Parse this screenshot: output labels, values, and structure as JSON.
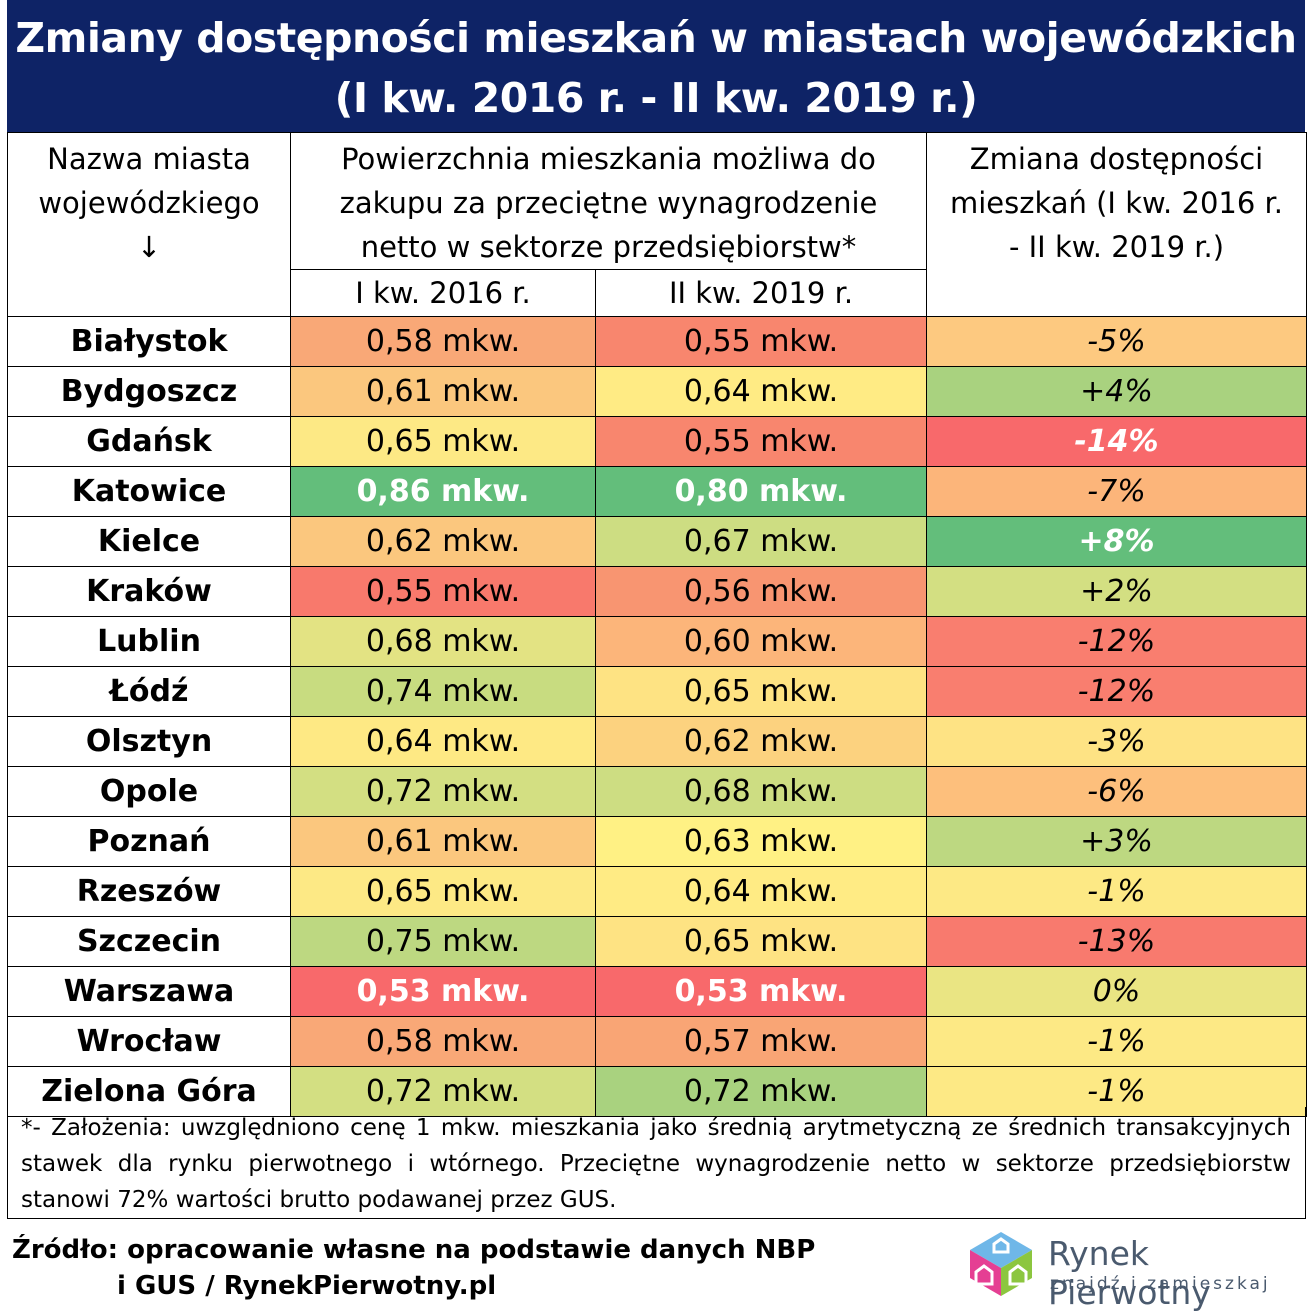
{
  "title": {
    "line1": "Zmiany dostępności mieszkań w miastach wojewódzkich",
    "line2": "(I kw. 2016 r. - II kw. 2019 r.)"
  },
  "header": {
    "city_col": "Nazwa miasta wojewódzkiego ↓",
    "area_col": "Powierzchnia mieszkania możliwa do zakupu za przeciętne wynagrodzenie netto w sektorze przedsiębiorstw*",
    "change_col": "Zmiana dostępności mieszkań (I kw. 2016 r. - II kw. 2019 r.)",
    "sub_2016": "I kw. 2016 r.",
    "sub_2019": "II kw. 2019 r."
  },
  "rows": [
    {
      "city": "Białystok",
      "v2016": "0,58 mkw.",
      "v2019": "0,55 mkw.",
      "change": "-5%"
    },
    {
      "city": "Bydgoszcz",
      "v2016": "0,61 mkw.",
      "v2019": "0,64 mkw.",
      "change": "+4%"
    },
    {
      "city": "Gdańsk",
      "v2016": "0,65 mkw.",
      "v2019": "0,55 mkw.",
      "change": "-14%"
    },
    {
      "city": "Katowice",
      "v2016": "0,86 mkw.",
      "v2019": "0,80 mkw.",
      "change": "-7%"
    },
    {
      "city": "Kielce",
      "v2016": "0,62 mkw.",
      "v2019": "0,67 mkw.",
      "change": "+8%"
    },
    {
      "city": "Kraków",
      "v2016": "0,55 mkw.",
      "v2019": "0,56 mkw.",
      "change": "+2%"
    },
    {
      "city": "Lublin",
      "v2016": "0,68 mkw.",
      "v2019": "0,60 mkw.",
      "change": "-12%"
    },
    {
      "city": "Łódź",
      "v2016": "0,74 mkw.",
      "v2019": "0,65 mkw.",
      "change": "-12%"
    },
    {
      "city": "Olsztyn",
      "v2016": "0,64 mkw.",
      "v2019": "0,62 mkw.",
      "change": "-3%"
    },
    {
      "city": "Opole",
      "v2016": "0,72 mkw.",
      "v2019": "0,68 mkw.",
      "change": "-6%"
    },
    {
      "city": "Poznań",
      "v2016": "0,61 mkw.",
      "v2019": "0,63 mkw.",
      "change": "+3%"
    },
    {
      "city": "Rzeszów",
      "v2016": "0,65 mkw.",
      "v2019": "0,64 mkw.",
      "change": "-1%"
    },
    {
      "city": "Szczecin",
      "v2016": "0,75 mkw.",
      "v2019": "0,65 mkw.",
      "change": "-13%"
    },
    {
      "city": "Warszawa",
      "v2016": "0,53 mkw.",
      "v2019": "0,53 mkw.",
      "change": "0%"
    },
    {
      "city": "Wrocław",
      "v2016": "0,58 mkw.",
      "v2019": "0,57 mkw.",
      "change": "-1%"
    },
    {
      "city": "Zielona Góra",
      "v2016": "0,72 mkw.",
      "v2019": "0,72 mkw.",
      "change": "-1%"
    }
  ],
  "cell_colors": {
    "v2016": [
      "#f9a877",
      "#fbc77e",
      "#fde985",
      "#63be7b",
      "#fbc77e",
      "#f8796c",
      "#e3e383",
      "#c8dc80",
      "#fee984",
      "#d3df82",
      "#fbc77e",
      "#fde985",
      "#bdd881",
      "#f8696b",
      "#f9a877",
      "#d3df82"
    ],
    "v2019": [
      "#f8866e",
      "#ffeb84",
      "#f8866e",
      "#63be7b",
      "#cddd82",
      "#f89571",
      "#fcb57a",
      "#fee383",
      "#fcd27f",
      "#cddd82",
      "#fff184",
      "#ffeb84",
      "#fee383",
      "#f8696b",
      "#f9a575",
      "#a9d27f"
    ],
    "change": [
      "#fdc980",
      "#a9d27f",
      "#f8696b",
      "#fcb57a",
      "#63be7b",
      "#d3df82",
      "#f97e6f",
      "#f97e6f",
      "#fee384",
      "#fdbf7c",
      "#bdd881",
      "#fde985",
      "#f87a6e",
      "#eae583",
      "#fde985",
      "#fde985"
    ]
  },
  "bold_white_cells": {
    "v2016": [
      "Katowice",
      "Warszawa"
    ],
    "v2019": [
      "Katowice",
      "Warszawa"
    ],
    "change": [
      "Gdańsk",
      "Kielce"
    ]
  },
  "footnote": "*- Założenia: uwzględniono cenę 1 mkw. mieszkania jako średnią arytmetyczną ze średnich transakcyjnych stawek dla rynku pierwotnego i wtórnego. Przeciętne wynagrodzenie netto w sektorze przedsiębiorstw stanowi 72% wartości brutto podawanej przez GUS.",
  "source": {
    "line1": "Źródło: opracowanie własne na podstawie danych NBP",
    "line2": "i GUS / RynekPierwotny.pl"
  },
  "logo": {
    "name": "Rynek Pierwotny",
    "tagline": "znajdź i zamieszkaj",
    "icon": "house-logo-icon"
  },
  "colors": {
    "title_bg": "#0e2366",
    "title_text": "#ffffff"
  }
}
